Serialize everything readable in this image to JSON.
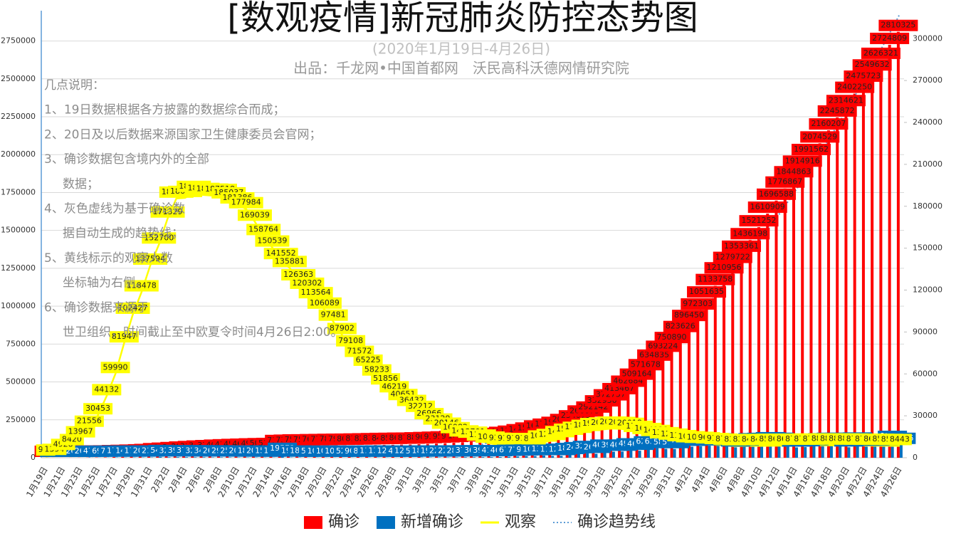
{
  "chart_data": {
    "type": "combo",
    "title": "[数观疫情]新冠肺炎防控态势图",
    "subtitle": "(2020年1月19日-4月26日)",
    "credit": "出品：千龙网•中国首都网　沃民高科沃德网情研究院",
    "notes": {
      "heading": "几点说明：",
      "items": [
        [
          "1、19日数据根据各方披露的数据综合而成；"
        ],
        [
          "2、20日及以后数据来源国家卫生健康委员会官网；"
        ],
        [
          "3、确诊数据包含境内外的全部",
          "数据；"
        ],
        [
          "4、灰色虚线为基于确诊数",
          "据自动生成的趋势线；"
        ],
        [
          "5、黄线标示的观察人数",
          "坐标轴为右侧。"
        ],
        [
          "6、确诊数据来源于",
          "世卫组织，时间截止至中欧夏令时间4月26日2:00。"
        ]
      ]
    },
    "categories": [
      "1月19日",
      null,
      "1月21日",
      null,
      "1月23日",
      null,
      "1月25日",
      null,
      "1月27日",
      null,
      "1月29日",
      null,
      "1月31日",
      null,
      "2月2日",
      null,
      "2月4日",
      null,
      "2月6日",
      null,
      "2月8日",
      null,
      "2月10日",
      null,
      "2月12日",
      null,
      "2月14日",
      null,
      "2月16日",
      null,
      "2月18日",
      null,
      "2月20日",
      null,
      "2月22日",
      null,
      "2月24日",
      null,
      "2月26日",
      null,
      "2月28日",
      null,
      "3月1日",
      null,
      "3月3日",
      null,
      "3月5日",
      null,
      "3月7日",
      null,
      "3月9日",
      null,
      "3月11日",
      null,
      "3月13日",
      null,
      "3月15日",
      null,
      "3月17日",
      null,
      "3月19日",
      null,
      "3月21日",
      null,
      "3月23日",
      null,
      "3月25日",
      null,
      "3月27日",
      null,
      "3月29日",
      null,
      "3月31日",
      null,
      "4月2日",
      null,
      "4月4日",
      null,
      "4月6日",
      null,
      "4月8日",
      null,
      "4月10日",
      null,
      "4月12日",
      null,
      "4月14日",
      null,
      "4月16日",
      null,
      "4月18日",
      null,
      "4月20日",
      null,
      "4月22日",
      null,
      "4月24日",
      null,
      "4月26日"
    ],
    "series": [
      {
        "name": "确诊",
        "type": "bar",
        "axis": "y",
        "color": "#ff0000",
        "values": [
          201,
          282,
          314,
          581,
          846,
          1320,
          2014,
          2798,
          4593,
          6065,
          7818,
          9826,
          11953,
          17391,
          20630,
          24554,
          28276,
          31481,
          34886,
          37558,
          40554,
          43103,
          45171,
          46997,
          49053,
          50580,
          51857,
          71429,
          73332,
          75204,
          75748,
          76769,
          77794,
          78811,
          79331,
          80239,
          81109,
          82294,
          83652,
          84950,
          85403,
          86604,
          87137,
          88948,
          90870,
          93090,
          95333,
          98192,
          101927,
          105586,
          109577,
          113702,
          118319,
          125048,
          132758,
          142539,
          153517,
          167515,
          179111,
          191127,
          209839,
          234073,
          266073,
          292142,
          332930,
          372757,
          413467,
          462684,
          509164,
          571678,
          634835,
          693224,
          750890,
          823626,
          896450,
          972303,
          1051635,
          1133758,
          1210956,
          1279722,
          1353361,
          1436198,
          1521252,
          1610909,
          1696588,
          1776867,
          1844863,
          1914916,
          1991562,
          2074529,
          2160207,
          2245872,
          2314621,
          2402250,
          2475723,
          2549632,
          2626321,
          2724809,
          2810325
        ]
      },
      {
        "name": "新增确诊",
        "type": "bar",
        "axis": "y",
        "color": "#0070c0",
        "values": [
          77,
          81,
          32,
          267,
          265,
          474,
          694,
          784,
          1795,
          1472,
          1753,
          2008,
          2127,
          5438,
          3239,
          3924,
          3722,
          3205,
          3405,
          2672,
          2996,
          2549,
          2068,
          1826,
          2056,
          1527,
          1277,
          19572,
          1903,
          1872,
          544,
          1021,
          1025,
          1017,
          520,
          908,
          870,
          1185,
          1358,
          1298,
          453,
          1201,
          533,
          1811,
          1922,
          2220,
          2243,
          2859,
          3735,
          3659,
          3991,
          4125,
          4617,
          6729,
          7710,
          9781,
          10978,
          13998,
          11596,
          12016,
          18712,
          24234,
          32000,
          26069,
          40788,
          39827,
          40710,
          49217,
          46480,
          62514,
          63157,
          58389,
          57666,
          72736,
          72824,
          75853,
          79332,
          82123,
          77198,
          68766,
          73639,
          82837,
          85054,
          89657,
          85679,
          80279,
          67996,
          70053,
          76646,
          82967,
          85678,
          85665,
          68749,
          87629,
          73473,
          73909,
          76689,
          98488,
          85516
        ]
      },
      {
        "name": "观察",
        "type": "line",
        "axis": "y2",
        "color": "#ffff00",
        "values": [
          922,
          1394,
          4928,
          8420,
          13967,
          21556,
          30453,
          44132,
          59990,
          81947,
          102427,
          118478,
          137594,
          152700,
          171329,
          185555,
          186045,
          189660,
          188183,
          187728,
          187518,
          185037,
          181386,
          177984,
          169039,
          158764,
          150539,
          141552,
          135881,
          126363,
          120302,
          113564,
          106089,
          97481,
          87902,
          79108,
          71572,
          65225,
          58233,
          51856,
          46219,
          40651,
          36432,
          32212,
          26966,
          23129,
          20146,
          16982,
          14607,
          13701,
          11656,
          10189,
          9351,
          9111,
          9144,
          9140,
          8989,
          10953,
          12077,
          14095,
          15801,
          17198,
          18581,
          19853,
          20314,
          20917,
          20643,
          20018,
          17831,
          16323,
          14928,
          13334,
          12307,
          11210,
          10435,
          10023,
          9655,
          9174,
          8723,
          8309,
          8337,
          8484,
          8451,
          8570,
          8600,
          8652,
          8710,
          8741,
          8755,
          8800,
          8870,
          8838,
          8800,
          8756,
          8700,
          8635,
          8580,
          8520,
          8443
        ]
      }
    ],
    "trendline": {
      "name": "确诊趋势线",
      "color": "#5b9bd5",
      "style": "dotted"
    },
    "ylim": [
      0,
      2950000
    ],
    "yticks": [
      0,
      250000,
      500000,
      750000,
      1000000,
      1250000,
      1500000,
      1750000,
      2000000,
      2250000,
      2500000,
      2750000
    ],
    "y2lim": [
      0,
      320000
    ],
    "y2ticks": [
      0,
      30000,
      60000,
      90000,
      120000,
      150000,
      180000,
      210000,
      240000,
      270000,
      300000
    ],
    "grid": true
  }
}
